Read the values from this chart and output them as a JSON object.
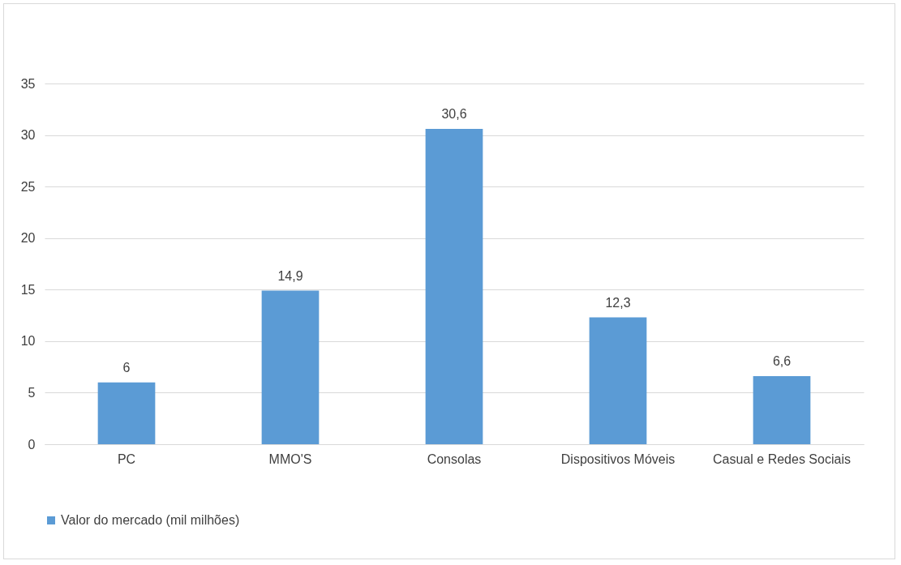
{
  "chart_data": {
    "type": "bar",
    "categories": [
      "PC",
      "MMO'S",
      "Consolas",
      "Dispositivos Móveis",
      "Casual e Redes Sociais"
    ],
    "series": [
      {
        "name": "Valor do mercado (mil milhões)",
        "color": "#5b9bd5",
        "values": [
          6,
          14.9,
          30.6,
          12.3,
          6.6
        ]
      }
    ],
    "value_labels": [
      "6",
      "14,9",
      "30,6",
      "12,3",
      "6,6"
    ],
    "ylim": [
      0,
      35
    ],
    "yticks": [
      0,
      5,
      10,
      15,
      20,
      25,
      30,
      35
    ],
    "grid": "y",
    "legend": "bottom"
  }
}
